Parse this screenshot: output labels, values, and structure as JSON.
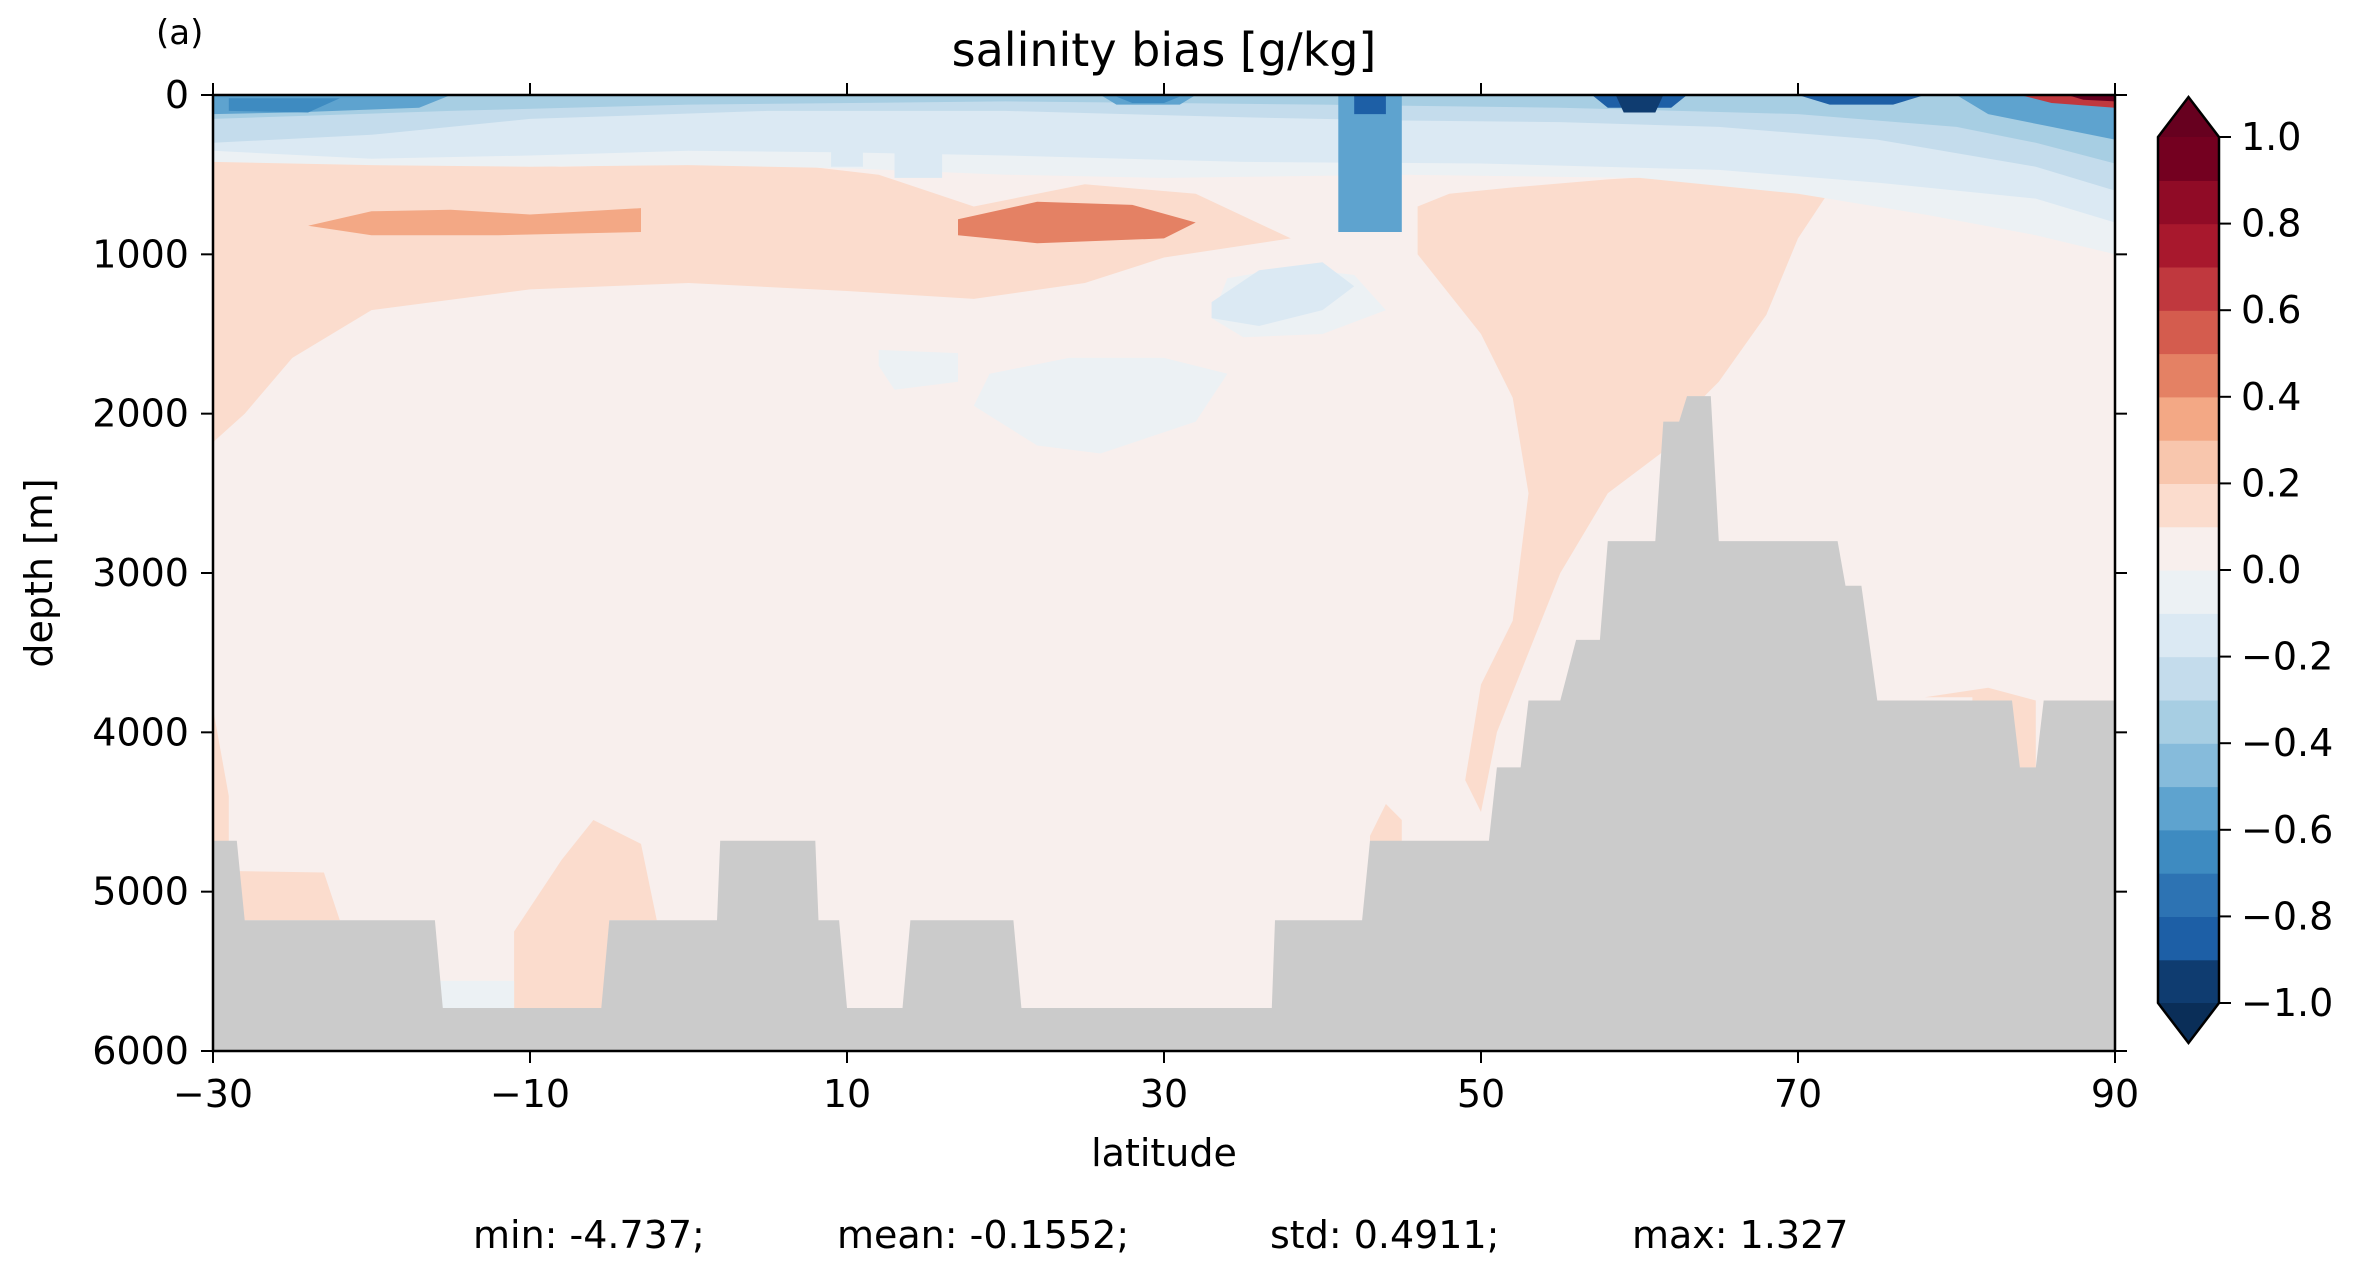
{
  "panel_label": "(a)",
  "chart_data": {
    "type": "heatmap",
    "title": "salinity bias [g/kg]",
    "xlabel": "latitude",
    "ylabel": "depth [m]",
    "xlim": [
      -30,
      90
    ],
    "ylim": [
      6000,
      0
    ],
    "y_inverted": true,
    "xticks": [
      -30,
      -10,
      10,
      30,
      50,
      70,
      90
    ],
    "xtick_labels": [
      "−30",
      "−10",
      "10",
      "30",
      "50",
      "70",
      "90"
    ],
    "yticks": [
      0,
      1000,
      2000,
      3000,
      4000,
      5000,
      6000
    ],
    "ytick_labels": [
      "0",
      "1000",
      "2000",
      "3000",
      "4000",
      "5000",
      "6000"
    ],
    "colorbar": {
      "range": [
        -1.0,
        1.0
      ],
      "extend": "both",
      "levels": [
        -1.0,
        -0.9,
        -0.8,
        -0.7,
        -0.6,
        -0.5,
        -0.4,
        -0.3,
        -0.2,
        -0.1,
        0.0,
        0.1,
        0.2,
        0.3,
        0.4,
        0.5,
        0.6,
        0.7,
        0.8,
        0.9,
        1.0
      ],
      "colors": [
        "#0f3c70",
        "#1d5fa6",
        "#2d73b3",
        "#3e8bc1",
        "#5ea3cf",
        "#86bbdb",
        "#a7cee3",
        "#c4dcec",
        "#dbe9f3",
        "#ecf1f4",
        "#f8efed",
        "#fbdccd",
        "#f8c6ad",
        "#f3a885",
        "#e48164",
        "#d45c4e",
        "#c0383e",
        "#a8182d",
        "#900b26",
        "#740020"
      ],
      "under_color": "#0a2e58",
      "over_color": "#67001f",
      "ticks": [
        1.0,
        0.8,
        0.6,
        0.4,
        0.2,
        0.0,
        -0.2,
        -0.4,
        -0.6,
        -0.8,
        -1.0
      ],
      "tick_labels": [
        "1.0",
        "0.8",
        "0.6",
        "0.4",
        "0.2",
        "0.0",
        "−0.2",
        "−0.4",
        "−0.6",
        "−0.8",
        "−1.0"
      ]
    },
    "background_value": 0.05,
    "regions": [
      {
        "value": 0.15,
        "poly": [
          [
            -30,
            380
          ],
          [
            -20,
            420
          ],
          [
            -8,
            450
          ],
          [
            5,
            420
          ],
          [
            12,
            500
          ],
          [
            18,
            700
          ],
          [
            25,
            560
          ],
          [
            32,
            620
          ],
          [
            38,
            900
          ],
          [
            30,
            1020
          ],
          [
            25,
            1180
          ],
          [
            18,
            1280
          ],
          [
            10,
            1230
          ],
          [
            0,
            1180
          ],
          [
            -10,
            1220
          ],
          [
            -20,
            1350
          ],
          [
            -25,
            1650
          ],
          [
            -28,
            2000
          ],
          [
            -30,
            2180
          ]
        ]
      },
      {
        "value": 0.35,
        "poly": [
          [
            -24,
            820
          ],
          [
            -20,
            730
          ],
          [
            -15,
            720
          ],
          [
            -10,
            750
          ],
          [
            -3,
            710
          ],
          [
            -3,
            860
          ],
          [
            -12,
            880
          ],
          [
            -20,
            880
          ]
        ]
      },
      {
        "value": 0.45,
        "poly": [
          [
            17,
            780
          ],
          [
            22,
            670
          ],
          [
            28,
            690
          ],
          [
            32,
            800
          ],
          [
            30,
            900
          ],
          [
            22,
            930
          ],
          [
            17,
            880
          ]
        ]
      },
      {
        "value": 0.15,
        "poly": [
          [
            48,
            620
          ],
          [
            52,
            580
          ],
          [
            58,
            530
          ],
          [
            63,
            500
          ],
          [
            67,
            500
          ],
          [
            72,
            600
          ],
          [
            70,
            900
          ],
          [
            68,
            1380
          ],
          [
            65,
            1800
          ],
          [
            64,
            1900
          ],
          [
            63,
            1900
          ],
          [
            62,
            2200
          ],
          [
            58,
            2500
          ],
          [
            55,
            3000
          ],
          [
            53,
            3500
          ],
          [
            51,
            4000
          ],
          [
            50,
            4500
          ],
          [
            49,
            4300
          ],
          [
            50,
            3700
          ],
          [
            52,
            3300
          ],
          [
            53,
            2500
          ],
          [
            52,
            1900
          ],
          [
            50,
            1500
          ],
          [
            46,
            1000
          ],
          [
            46,
            700
          ]
        ]
      },
      {
        "value": 0.15,
        "poly": [
          [
            -30,
            3850
          ],
          [
            -29,
            4400
          ],
          [
            -29,
            4870
          ],
          [
            -23,
            4880
          ],
          [
            -22,
            5180
          ],
          [
            -30,
            5180
          ]
        ]
      },
      {
        "value": 0.15,
        "poly": [
          [
            -11,
            5730
          ],
          [
            -11,
            5250
          ],
          [
            -8,
            4800
          ],
          [
            -6,
            4550
          ],
          [
            -3,
            4700
          ],
          [
            -2,
            5180
          ],
          [
            -5,
            5180
          ],
          [
            -5,
            5730
          ]
        ]
      },
      {
        "value": 0.15,
        "poly": [
          [
            43,
            4650
          ],
          [
            44,
            4450
          ],
          [
            45,
            4550
          ],
          [
            45,
            4690
          ],
          [
            43,
            4690
          ]
        ]
      },
      {
        "value": 0.15,
        "poly": [
          [
            78,
            3780
          ],
          [
            82,
            3720
          ],
          [
            85,
            3800
          ],
          [
            85,
            4220
          ],
          [
            81,
            4220
          ],
          [
            81,
            3780
          ]
        ]
      },
      {
        "value": -0.05,
        "poly": [
          [
            34,
            1150
          ],
          [
            38,
            1080
          ],
          [
            42,
            1130
          ],
          [
            44,
            1350
          ],
          [
            40,
            1500
          ],
          [
            35,
            1520
          ],
          [
            33,
            1400
          ]
        ]
      },
      {
        "value": -0.05,
        "poly": [
          [
            12,
            1600
          ],
          [
            17,
            1620
          ],
          [
            17,
            1800
          ],
          [
            13,
            1850
          ],
          [
            12,
            1700
          ]
        ]
      },
      {
        "value": -0.05,
        "poly": [
          [
            19,
            1750
          ],
          [
            24,
            1650
          ],
          [
            30,
            1650
          ],
          [
            34,
            1750
          ],
          [
            32,
            2050
          ],
          [
            26,
            2250
          ],
          [
            22,
            2200
          ],
          [
            18,
            1950
          ]
        ]
      },
      {
        "value": -0.05,
        "poly": [
          [
            -16,
            5560
          ],
          [
            -11,
            5560
          ],
          [
            -11,
            5730
          ],
          [
            -16,
            5730
          ]
        ]
      },
      {
        "value": -0.15,
        "poly": [
          [
            33,
            1300
          ],
          [
            36,
            1100
          ],
          [
            40,
            1050
          ],
          [
            42,
            1200
          ],
          [
            40,
            1350
          ],
          [
            36,
            1450
          ],
          [
            33,
            1400
          ]
        ]
      },
      {
        "value": -0.05,
        "poly": [
          [
            -30,
            0
          ],
          [
            90,
            0
          ],
          [
            90,
            1000
          ],
          [
            85,
            880
          ],
          [
            78,
            750
          ],
          [
            70,
            620
          ],
          [
            60,
            520
          ],
          [
            45,
            500
          ],
          [
            30,
            520
          ],
          [
            20,
            500
          ],
          [
            10,
            460
          ],
          [
            0,
            440
          ],
          [
            -10,
            450
          ],
          [
            -20,
            440
          ],
          [
            -30,
            420
          ]
        ]
      },
      {
        "value": -0.15,
        "poly": [
          [
            -30,
            0
          ],
          [
            90,
            0
          ],
          [
            90,
            800
          ],
          [
            85,
            650
          ],
          [
            75,
            550
          ],
          [
            65,
            470
          ],
          [
            50,
            430
          ],
          [
            35,
            420
          ],
          [
            20,
            380
          ],
          [
            10,
            360
          ],
          [
            0,
            350
          ],
          [
            -10,
            380
          ],
          [
            -20,
            400
          ],
          [
            -30,
            350
          ]
        ]
      },
      {
        "value": -0.15,
        "poly": [
          [
            9,
            300
          ],
          [
            11,
            300
          ],
          [
            11,
            450
          ],
          [
            9,
            450
          ]
        ]
      },
      {
        "value": -0.15,
        "poly": [
          [
            13,
            350
          ],
          [
            16,
            350
          ],
          [
            16,
            520
          ],
          [
            13,
            520
          ]
        ]
      },
      {
        "value": -0.25,
        "poly": [
          [
            -30,
            0
          ],
          [
            90,
            0
          ],
          [
            90,
            600
          ],
          [
            85,
            450
          ],
          [
            75,
            280
          ],
          [
            65,
            200
          ],
          [
            55,
            170
          ],
          [
            45,
            160
          ],
          [
            35,
            140
          ],
          [
            20,
            100
          ],
          [
            5,
            100
          ],
          [
            -10,
            150
          ],
          [
            -20,
            250
          ],
          [
            -30,
            300
          ]
        ]
      },
      {
        "value": -0.35,
        "poly": [
          [
            -30,
            0
          ],
          [
            90,
            0
          ],
          [
            90,
            430
          ],
          [
            85,
            300
          ],
          [
            80,
            200
          ],
          [
            70,
            120
          ],
          [
            55,
            80
          ],
          [
            40,
            60
          ],
          [
            20,
            40
          ],
          [
            0,
            60
          ],
          [
            -15,
            100
          ],
          [
            -30,
            150
          ]
        ]
      },
      {
        "value": -0.5,
        "poly": [
          [
            -30,
            0
          ],
          [
            -15,
            0
          ],
          [
            -17,
            80
          ],
          [
            -25,
            110
          ],
          [
            -30,
            120
          ]
        ]
      },
      {
        "value": -0.5,
        "poly": [
          [
            26,
            0
          ],
          [
            32,
            0
          ],
          [
            31,
            60
          ],
          [
            27,
            60
          ]
        ]
      },
      {
        "value": -0.5,
        "poly": [
          [
            80,
            0
          ],
          [
            90,
            0
          ],
          [
            90,
            280
          ],
          [
            86,
            200
          ],
          [
            82,
            120
          ]
        ]
      },
      {
        "value": -0.65,
        "poly": [
          [
            -29,
            20
          ],
          [
            -22,
            20
          ],
          [
            -24,
            110
          ],
          [
            -29,
            100
          ]
        ]
      },
      {
        "value": -0.65,
        "poly": [
          [
            27,
            10
          ],
          [
            31,
            10
          ],
          [
            30,
            50
          ],
          [
            28,
            50
          ]
        ]
      },
      {
        "value": -0.55,
        "poly": [
          [
            41,
            0
          ],
          [
            45,
            0
          ],
          [
            45,
            860
          ],
          [
            41,
            860
          ]
        ]
      },
      {
        "value": -0.85,
        "poly": [
          [
            42,
            0
          ],
          [
            44,
            0
          ],
          [
            44,
            120
          ],
          [
            42,
            120
          ]
        ]
      },
      {
        "value": -0.85,
        "poly": [
          [
            57,
            0
          ],
          [
            63,
            0
          ],
          [
            62,
            80
          ],
          [
            58,
            80
          ]
        ]
      },
      {
        "value": -0.95,
        "poly": [
          [
            58.5,
            0
          ],
          [
            61.5,
            0
          ],
          [
            61,
            110
          ],
          [
            59,
            110
          ]
        ]
      },
      {
        "value": -0.85,
        "poly": [
          [
            70,
            0
          ],
          [
            78,
            0
          ],
          [
            76,
            60
          ],
          [
            72,
            60
          ]
        ]
      },
      {
        "value": 0.7,
        "poly": [
          [
            84,
            0
          ],
          [
            90,
            0
          ],
          [
            90,
            80
          ],
          [
            86,
            50
          ]
        ]
      },
      {
        "value": 1.1,
        "poly": [
          [
            87,
            0
          ],
          [
            90,
            0
          ],
          [
            90,
            40
          ],
          [
            88,
            30
          ]
        ]
      }
    ],
    "bathymetry": {
      "color": "#cbcbcb",
      "boundary": [
        [
          -30,
          4680
        ],
        [
          -28.5,
          4680
        ],
        [
          -28,
          5180
        ],
        [
          -16,
          5180
        ],
        [
          -15.5,
          5730
        ],
        [
          -5.5,
          5730
        ],
        [
          -5,
          5180
        ],
        [
          1.8,
          5180
        ],
        [
          2,
          4680
        ],
        [
          8,
          4680
        ],
        [
          8.2,
          5180
        ],
        [
          9.5,
          5180
        ],
        [
          10,
          5730
        ],
        [
          13.5,
          5730
        ],
        [
          14,
          5180
        ],
        [
          20.5,
          5180
        ],
        [
          21,
          5730
        ],
        [
          36.8,
          5730
        ],
        [
          37,
          5180
        ],
        [
          42.5,
          5180
        ],
        [
          43,
          4680
        ],
        [
          50.5,
          4680
        ],
        [
          51,
          4220
        ],
        [
          52.5,
          4220
        ],
        [
          53,
          3800
        ],
        [
          55,
          3800
        ],
        [
          56,
          3420
        ],
        [
          57.5,
          3420
        ],
        [
          58,
          2800
        ],
        [
          61,
          2800
        ],
        [
          61.5,
          2050
        ],
        [
          62.5,
          2050
        ],
        [
          63,
          1890
        ],
        [
          64.5,
          1890
        ],
        [
          65,
          2800
        ],
        [
          72.5,
          2800
        ],
        [
          73,
          3080
        ],
        [
          74,
          3080
        ],
        [
          75,
          3800
        ],
        [
          83.5,
          3800
        ],
        [
          84,
          4220
        ],
        [
          85,
          4220
        ],
        [
          85.5,
          3800
        ],
        [
          90,
          3800
        ]
      ]
    },
    "stats": {
      "min": "min: -4.737;",
      "mean": "mean: -0.1552;",
      "std": "std: 0.4911;",
      "max": "max: 1.327"
    }
  }
}
